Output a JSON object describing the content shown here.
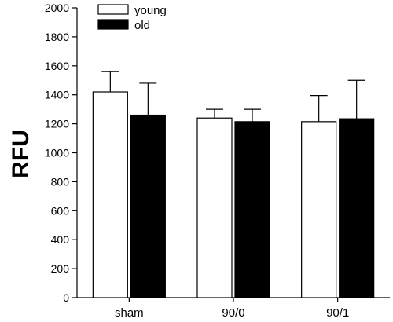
{
  "chart_data": {
    "type": "bar",
    "title": "",
    "xlabel": "",
    "ylabel": "RFU",
    "ylim": [
      0,
      2000
    ],
    "yticks": [
      0,
      200,
      400,
      600,
      800,
      1000,
      1200,
      1400,
      1600,
      1800,
      2000
    ],
    "categories": [
      "sham",
      "90/0",
      "90/1"
    ],
    "series": [
      {
        "name": "young",
        "color": "#ffffff",
        "values": [
          1420,
          1240,
          1215
        ],
        "errors": [
          140,
          60,
          180
        ]
      },
      {
        "name": "old",
        "color": "#000000",
        "values": [
          1260,
          1215,
          1235
        ],
        "errors": [
          220,
          85,
          265
        ]
      }
    ],
    "error_bars": "upper",
    "grid": false,
    "legend": "top-left"
  }
}
